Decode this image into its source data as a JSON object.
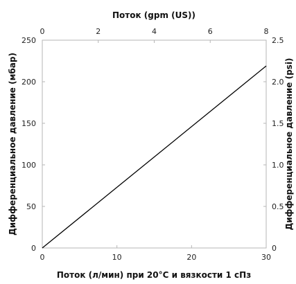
{
  "chart_data": {
    "type": "line",
    "title": "",
    "xlabel": "Поток (л/мин) при 20°C и вязкости 1 сПз",
    "ylabel": "Дифференциальное давление (мбар)",
    "x2label": "Поток (gpm (US))",
    "y2label": "Дифференциальное давление (psi)",
    "xlim": [
      0,
      30
    ],
    "ylim": [
      0,
      250
    ],
    "x2lim": [
      0,
      8
    ],
    "y2lim": [
      0,
      2.5
    ],
    "x_ticks": [
      0,
      10,
      20,
      30
    ],
    "y_ticks": [
      0,
      50,
      100,
      150,
      200,
      250
    ],
    "x2_ticks": [
      0,
      2,
      4,
      6,
      8
    ],
    "y2_ticks": [
      "0",
      "0.5",
      "1.0",
      "1.5",
      "2.0",
      "2.5"
    ],
    "grid": false,
    "legend": "none",
    "line_color": "#000000",
    "series": [
      {
        "x": [
          0,
          30
        ],
        "y": [
          0,
          219
        ]
      }
    ]
  }
}
